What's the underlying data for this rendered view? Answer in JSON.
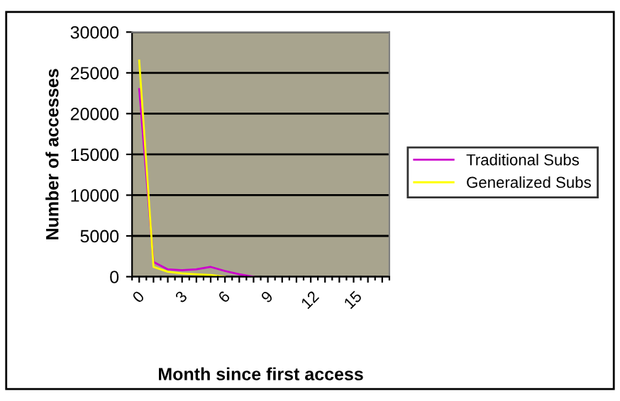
{
  "chart_data": {
    "type": "line",
    "xlabel": "Month since first access",
    "ylabel": "Number of accesses",
    "categories": [
      "0",
      null,
      null,
      "3",
      null,
      null,
      "6",
      null,
      null,
      "9",
      null,
      null,
      "12",
      null,
      null,
      "15",
      null,
      null
    ],
    "series": [
      {
        "name": "Traditional Subs",
        "color": "#cc00cc",
        "values": [
          23000,
          1800,
          900,
          800,
          900,
          1200,
          700,
          300,
          0,
          null,
          null,
          null,
          null,
          null,
          null,
          null,
          null,
          null
        ]
      },
      {
        "name": "Generalized Subs",
        "color": "#ffff00",
        "values": [
          26500,
          1200,
          600,
          400,
          300,
          200,
          0,
          null,
          null,
          null,
          null,
          null,
          null,
          null,
          null,
          null,
          null,
          null
        ]
      }
    ],
    "ylim": [
      0,
      30000
    ],
    "yticks": [
      0,
      5000,
      10000,
      15000,
      20000,
      25000,
      30000
    ],
    "grid": "y",
    "legend": "right",
    "marker": "none",
    "line_style": "solid"
  }
}
